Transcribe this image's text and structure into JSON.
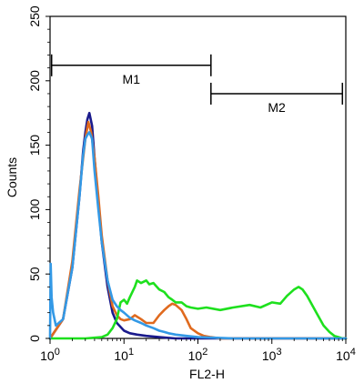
{
  "chart_data": {
    "type": "line",
    "title": "",
    "xlabel": "FL2-H",
    "ylabel": "Counts",
    "xscale": "log",
    "xlim": [
      1,
      10000
    ],
    "ylim": [
      0,
      250
    ],
    "grid": false,
    "x_ticks": [
      {
        "value": 1,
        "base": "10",
        "exp": "0"
      },
      {
        "value": 10,
        "base": "10",
        "exp": "1"
      },
      {
        "value": 100,
        "base": "10",
        "exp": "2"
      },
      {
        "value": 1000,
        "base": "10",
        "exp": "3"
      },
      {
        "value": 10000,
        "base": "10",
        "exp": "4"
      }
    ],
    "y_ticks": [
      0,
      50,
      100,
      150,
      200,
      250
    ],
    "markers": [
      {
        "label": "M1",
        "x_start": 1.05,
        "x_end": 150,
        "y": 212
      },
      {
        "label": "M2",
        "x_start": 150,
        "x_end": 9000,
        "y": 190
      }
    ],
    "series": [
      {
        "color": "#1a1a8c",
        "x": [
          1.0,
          1.5,
          2.0,
          2.5,
          2.8,
          3.0,
          3.2,
          3.4,
          3.7,
          4.0,
          4.5,
          5.0,
          6.0,
          7.0,
          8.0,
          10,
          12,
          15,
          20,
          30,
          50,
          100,
          1000,
          10000
        ],
        "y": [
          0,
          15,
          55,
          110,
          145,
          160,
          170,
          175,
          165,
          140,
          105,
          75,
          40,
          20,
          12,
          6,
          4,
          3,
          2,
          1,
          0,
          0,
          0,
          0
        ]
      },
      {
        "color": "#e06a1e",
        "x": [
          1.0,
          1.5,
          2.0,
          2.5,
          3.0,
          3.3,
          3.6,
          4.0,
          4.5,
          5.0,
          6.0,
          7.0,
          8.0,
          9.0,
          10,
          12,
          14,
          17,
          20,
          25,
          30,
          35,
          40,
          45,
          50,
          60,
          70,
          80,
          100,
          120,
          150,
          200,
          1000,
          10000
        ],
        "y": [
          0,
          15,
          60,
          115,
          155,
          168,
          160,
          140,
          110,
          80,
          45,
          25,
          18,
          15,
          14,
          15,
          18,
          15,
          12,
          12,
          18,
          22,
          25,
          27,
          26,
          22,
          15,
          8,
          4,
          2,
          1,
          0,
          0,
          0
        ]
      },
      {
        "color": "#1ee01e",
        "x": [
          1.0,
          3.0,
          5.0,
          6.0,
          7.0,
          8.0,
          9.0,
          10,
          11,
          12,
          14,
          15,
          17,
          20,
          22,
          25,
          30,
          35,
          40,
          45,
          50,
          60,
          70,
          80,
          100,
          130,
          200,
          300,
          500,
          700,
          1000,
          1300,
          1600,
          2000,
          2300,
          2600,
          3000,
          4000,
          5000,
          6000,
          7000,
          8000,
          9000,
          10000
        ],
        "y": [
          0,
          0,
          1,
          3,
          8,
          15,
          28,
          30,
          27,
          32,
          40,
          45,
          43,
          45,
          42,
          43,
          38,
          36,
          32,
          30,
          28,
          28,
          25,
          24,
          23,
          24,
          22,
          24,
          26,
          24,
          28,
          27,
          33,
          38,
          40,
          38,
          33,
          20,
          10,
          5,
          2,
          1,
          0,
          0
        ]
      },
      {
        "color": "#3399e6",
        "x": [
          1.0,
          1.02,
          1.05,
          1.1,
          1.2,
          1.5,
          2.0,
          2.5,
          2.8,
          3.0,
          3.2,
          3.4,
          3.7,
          4.0,
          4.5,
          5.0,
          6.0,
          7.0,
          8.0,
          9.0,
          10,
          12,
          14,
          17,
          20,
          25,
          30,
          35,
          40,
          50,
          70,
          100,
          300,
          1000,
          10000
        ],
        "y": [
          0,
          58,
          32,
          20,
          10,
          15,
          55,
          110,
          142,
          155,
          158,
          160,
          155,
          130,
          100,
          75,
          45,
          30,
          25,
          22,
          20,
          16,
          14,
          12,
          10,
          8,
          6,
          5,
          4,
          3,
          2,
          1,
          0,
          0,
          0
        ]
      }
    ]
  }
}
